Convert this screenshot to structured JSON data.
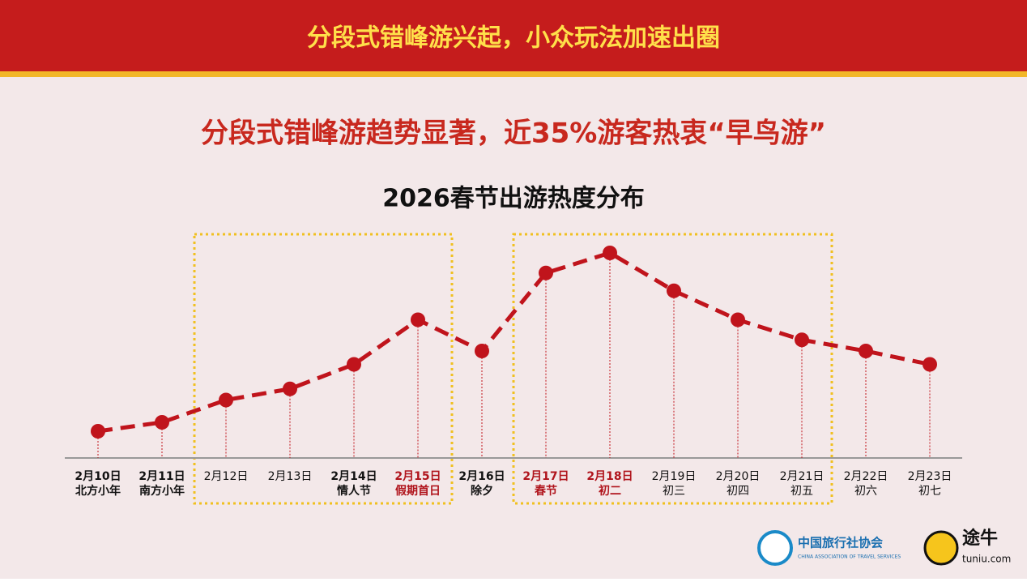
{
  "header": {
    "title": "分段式错峰游兴起，小众玩法加速出圈"
  },
  "headline": "分段式错峰游趋势显著，近35%游客热衷“早鸟游”",
  "chart_data": {
    "type": "line",
    "title": "2026春节出游热度分布",
    "categories": [
      "2月10日",
      "2月11日",
      "2月12日",
      "2月13日",
      "2月14日",
      "2月15日",
      "2月16日",
      "2月17日",
      "2月18日",
      "2月19日",
      "2月20日",
      "2月21日",
      "2月22日",
      "2月23日"
    ],
    "sublabels": [
      "北方小年",
      "南方小年",
      null,
      null,
      "情人节",
      "假期首日",
      "除夕",
      "春节",
      "初二",
      "初三",
      "初四",
      "初五",
      "初六",
      "初七"
    ],
    "category_colors": [
      "#111",
      "#111",
      "#111",
      "#111",
      "#111",
      "#b0141c",
      "#111",
      "#b0141c",
      "#b0141c",
      "#111",
      "#111",
      "#111",
      "#111",
      "#111"
    ],
    "category_styles": [
      "bold",
      "bold",
      "normal",
      "normal",
      "bold",
      "bold",
      "bold",
      "bold",
      "bold",
      "normal",
      "normal",
      "normal",
      "normal",
      "normal"
    ],
    "values": [
      12,
      16,
      26,
      31,
      42,
      62,
      48,
      83,
      92,
      75,
      62,
      53,
      48,
      42
    ],
    "color": "#c0141c",
    "ylim": [
      0,
      100
    ]
  },
  "logos": {
    "association": "中国旅行社协会",
    "association_en": "CHINA ASSOCIATION OF TRAVEL SERVICES",
    "tuniu": "途牛",
    "tuniu_url": "tuniu.com"
  }
}
